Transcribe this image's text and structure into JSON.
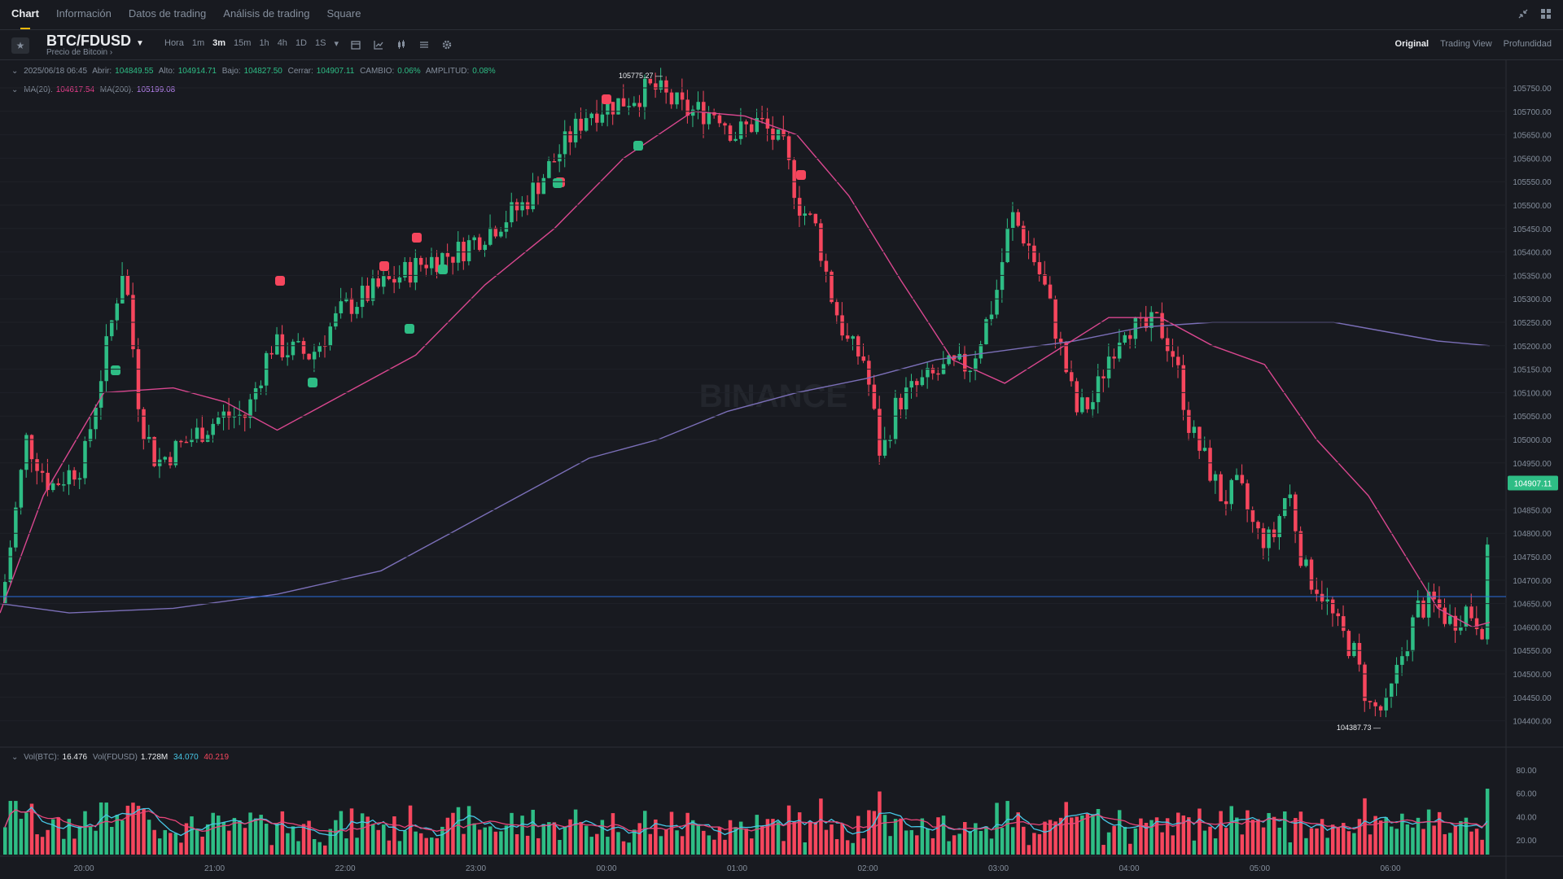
{
  "topnav": {
    "tabs": [
      {
        "label": "Chart",
        "active": true
      },
      {
        "label": "Información",
        "active": false
      },
      {
        "label": "Datos de trading",
        "active": false
      },
      {
        "label": "Análisis de trading",
        "active": false
      },
      {
        "label": "Square",
        "active": false
      }
    ],
    "right_icons": [
      "minimize-icon",
      "layout-icon"
    ]
  },
  "toolbar": {
    "symbol": "BTC/FDUSD",
    "subtitle": "Precio de Bitcoin",
    "intervals": [
      {
        "label": "Hora",
        "active": false
      },
      {
        "label": "1m",
        "active": false
      },
      {
        "label": "3m",
        "active": true
      },
      {
        "label": "15m",
        "active": false
      },
      {
        "label": "1h",
        "active": false
      },
      {
        "label": "4h",
        "active": false
      },
      {
        "label": "1D",
        "active": false
      },
      {
        "label": "1S",
        "active": false
      }
    ],
    "tool_icons": [
      "calendar-icon",
      "indicator-icon",
      "candle-type-icon",
      "layout-settings-icon",
      "gear-icon"
    ],
    "views": [
      {
        "label": "Original",
        "active": true
      },
      {
        "label": "Trading View",
        "active": false
      },
      {
        "label": "Profundidad",
        "active": false
      }
    ]
  },
  "ohlc": {
    "date": "2025/06/18 06:45",
    "open_label": "Abrir:",
    "open": "104849.55",
    "high_label": "Alto:",
    "high": "104914.71",
    "low_label": "Bajo:",
    "low": "104827.50",
    "close_label": "Cerrar:",
    "close": "104907.11",
    "change_label": "CAMBIO:",
    "change": "0.06%",
    "amp_label": "AMPLITUD:",
    "amp": "0.08%"
  },
  "ma": {
    "ma20_label": "MA(20):",
    "ma20": "104617.54",
    "ma200_label": "MA(200):",
    "ma200": "105199.08"
  },
  "vol": {
    "btc_label": "Vol(BTC):",
    "btc": "16.476",
    "fdusd_label": "Vol(FDUSD)",
    "fdusd": "1.728M",
    "ma1": "34.070",
    "ma2": "40.219"
  },
  "watermark": "BINANCE",
  "chart_data": {
    "type": "candlestick",
    "price_ticks": [
      "105750.00",
      "105700.00",
      "105650.00",
      "105600.00",
      "105550.00",
      "105500.00",
      "105450.00",
      "105400.00",
      "105350.00",
      "105300.00",
      "105250.00",
      "105200.00",
      "105150.00",
      "105100.00",
      "105050.00",
      "105000.00",
      "104950.00",
      "104850.00",
      "104800.00",
      "104750.00",
      "104700.00",
      "104650.00",
      "104600.00",
      "104550.00",
      "104500.00",
      "104450.00",
      "104400.00"
    ],
    "ylim": [
      104387.73,
      105775.27
    ],
    "current_price": "104907.11",
    "high_marker": "105775.27",
    "low_marker": "104387.73",
    "h_line_price": 104665,
    "time_ticks": [
      "20:00",
      "21:00",
      "22:00",
      "23:00",
      "00:00",
      "01:00",
      "02:00",
      "03:00",
      "04:00",
      "05:00",
      "06:00"
    ],
    "volume_ticks": [
      "80.00",
      "60.00",
      "40.00",
      "20.00"
    ],
    "ma20_path": [
      [
        104630,
        0
      ],
      [
        104880,
        25
      ],
      [
        105100,
        60
      ],
      [
        105110,
        100
      ],
      [
        105080,
        130
      ],
      [
        105020,
        160
      ],
      [
        105100,
        200
      ],
      [
        105180,
        240
      ],
      [
        105330,
        280
      ],
      [
        105450,
        320
      ],
      [
        105600,
        360
      ],
      [
        105700,
        400
      ],
      [
        105690,
        430
      ],
      [
        105650,
        460
      ],
      [
        105520,
        490
      ],
      [
        105340,
        520
      ],
      [
        105170,
        550
      ],
      [
        105120,
        580
      ],
      [
        105190,
        610
      ],
      [
        105260,
        640
      ],
      [
        105260,
        670
      ],
      [
        105200,
        700
      ],
      [
        105160,
        730
      ],
      [
        105000,
        760
      ],
      [
        104880,
        790
      ],
      [
        104760,
        810
      ],
      [
        104640,
        830
      ],
      [
        104600,
        850
      ],
      [
        104610,
        860
      ]
    ],
    "ma200_path": [
      [
        104650,
        0
      ],
      [
        104630,
        40
      ],
      [
        104640,
        100
      ],
      [
        104670,
        160
      ],
      [
        104720,
        220
      ],
      [
        104800,
        260
      ],
      [
        104880,
        300
      ],
      [
        104960,
        340
      ],
      [
        105000,
        380
      ],
      [
        105060,
        420
      ],
      [
        105100,
        460
      ],
      [
        105130,
        500
      ],
      [
        105170,
        540
      ],
      [
        105190,
        580
      ],
      [
        105210,
        620
      ],
      [
        105240,
        660
      ],
      [
        105250,
        700
      ],
      [
        105250,
        740
      ],
      [
        105250,
        770
      ],
      [
        105230,
        800
      ],
      [
        105210,
        830
      ],
      [
        105200,
        860
      ]
    ]
  }
}
